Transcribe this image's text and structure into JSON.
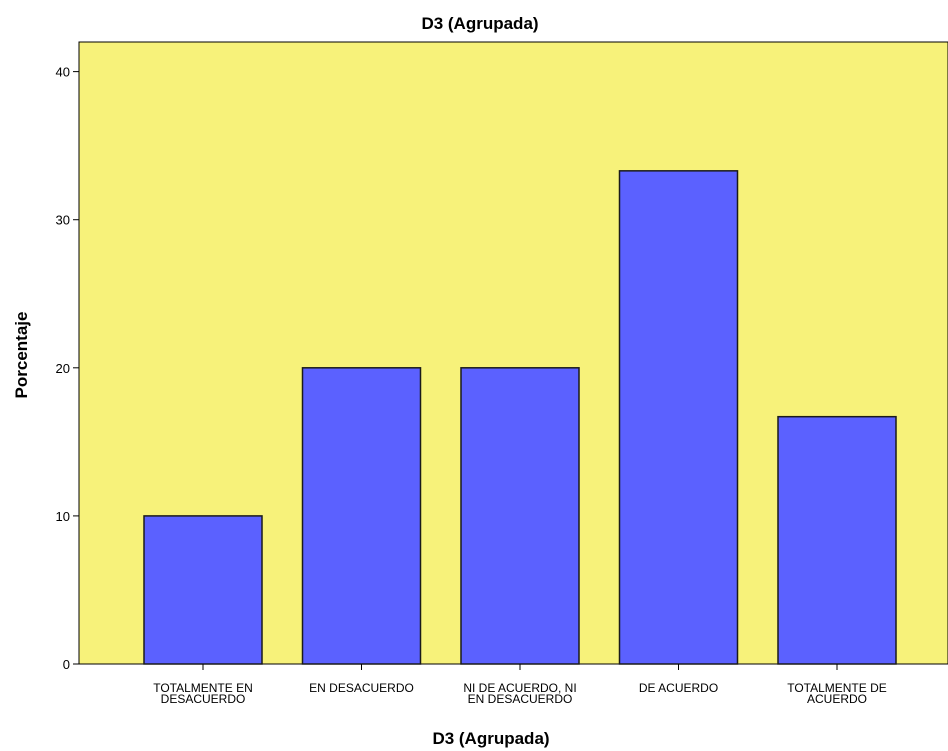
{
  "chart_data": {
    "type": "bar",
    "title": "D3 (Agrupada)",
    "xlabel": "D3 (Agrupada)",
    "ylabel": "Porcentaje",
    "categories": [
      [
        "TOTALMENTE EN",
        "DESACUERDO"
      ],
      [
        "EN DESACUERDO"
      ],
      [
        "NI DE ACUERDO, NI",
        "EN DESACUERDO"
      ],
      [
        "DE ACUERDO"
      ],
      [
        "TOTALMENTE DE",
        "ACUERDO"
      ]
    ],
    "values": [
      10,
      20,
      20,
      33.3,
      16.7
    ],
    "ylim": [
      0,
      42
    ],
    "yticks": [
      "0",
      "10",
      "20",
      "30",
      "40"
    ],
    "grid": false,
    "colors": {
      "plot_background": "#f7f27a",
      "bar_fill": "#5b61ff",
      "bar_stroke": "#1a1a1a"
    }
  }
}
